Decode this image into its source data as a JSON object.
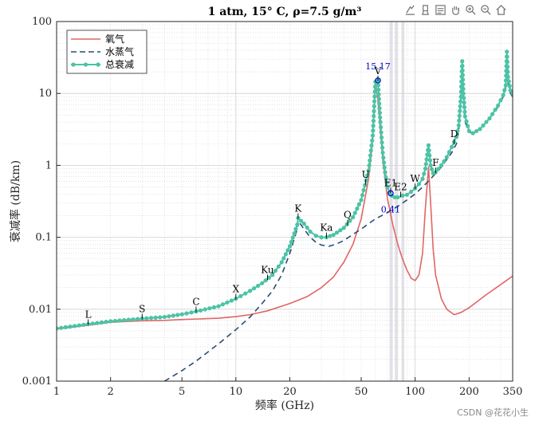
{
  "toolbar": {
    "icons": [
      "export-icon",
      "brush-icon",
      "datatip-icon",
      "pan-icon",
      "zoom-in-icon",
      "zoom-out-icon",
      "home-icon"
    ]
  },
  "watermark": "CSDN @花花小生",
  "colors": {
    "oxygen": "#e06666",
    "water": "#2b4d74",
    "total": "#4cc3a5",
    "datatip": "#0000cc",
    "band": "#c8c8d4",
    "grid": "#d0d0d0"
  },
  "chart_data": {
    "type": "line",
    "title": "1  atm,  15° C,  ρ=7.5  g/m³",
    "xlabel": "频率 (GHz)",
    "ylabel": "衰减率 (dB/km)",
    "xscale": "log",
    "yscale": "log",
    "xlim": [
      1,
      350
    ],
    "ylim": [
      0.001,
      100
    ],
    "grid": true,
    "legend_position": "top-left",
    "xticks": [
      {
        "v": 1,
        "label": "1"
      },
      {
        "v": 2,
        "label": "2"
      },
      {
        "v": 5,
        "label": "5"
      },
      {
        "v": 10,
        "label": "10"
      },
      {
        "v": 20,
        "label": "20"
      },
      {
        "v": 50,
        "label": "50"
      },
      {
        "v": 100,
        "label": "100"
      },
      {
        "v": 200,
        "label": "200"
      },
      {
        "v": 350,
        "label": "350"
      }
    ],
    "yticks": [
      {
        "v": 0.001,
        "label": "0.001"
      },
      {
        "v": 0.01,
        "label": "0.01"
      },
      {
        "v": 0.1,
        "label": "0.1"
      },
      {
        "v": 1,
        "label": "1"
      },
      {
        "v": 10,
        "label": "10"
      },
      {
        "v": 100,
        "label": "100"
      }
    ],
    "shaded_bands": [
      [
        72,
        75
      ],
      [
        77,
        80
      ],
      [
        84,
        87
      ]
    ],
    "series": [
      {
        "name": "氧气",
        "style": "solid",
        "points": [
          [
            1,
            0.0053
          ],
          [
            1.5,
            0.006
          ],
          [
            2,
            0.0066
          ],
          [
            3,
            0.0069
          ],
          [
            4,
            0.007
          ],
          [
            5,
            0.0072
          ],
          [
            6,
            0.0073
          ],
          [
            8,
            0.0075
          ],
          [
            10,
            0.0079
          ],
          [
            12,
            0.0084
          ],
          [
            15,
            0.0095
          ],
          [
            20,
            0.012
          ],
          [
            25,
            0.015
          ],
          [
            30,
            0.02
          ],
          [
            35,
            0.028
          ],
          [
            40,
            0.045
          ],
          [
            45,
            0.08
          ],
          [
            50,
            0.18
          ],
          [
            55,
            0.65
          ],
          [
            58,
            2.3
          ],
          [
            60,
            14
          ],
          [
            62,
            8
          ],
          [
            64,
            3
          ],
          [
            66,
            1.2
          ],
          [
            70,
            0.35
          ],
          [
            75,
            0.15
          ],
          [
            80,
            0.08
          ],
          [
            85,
            0.05
          ],
          [
            90,
            0.035
          ],
          [
            95,
            0.027
          ],
          [
            100,
            0.025
          ],
          [
            105,
            0.03
          ],
          [
            110,
            0.06
          ],
          [
            114,
            0.25
          ],
          [
            118.75,
            0.95
          ],
          [
            122,
            0.3
          ],
          [
            126,
            0.07
          ],
          [
            130,
            0.03
          ],
          [
            140,
            0.014
          ],
          [
            150,
            0.01
          ],
          [
            165,
            0.0084
          ],
          [
            180,
            0.009
          ],
          [
            200,
            0.0105
          ],
          [
            250,
            0.016
          ],
          [
            300,
            0.022
          ],
          [
            350,
            0.029
          ]
        ]
      },
      {
        "name": "水蒸气",
        "style": "dashed",
        "points": [
          [
            4,
            0.001
          ],
          [
            5,
            0.0014
          ],
          [
            6,
            0.0019
          ],
          [
            8,
            0.0033
          ],
          [
            10,
            0.0052
          ],
          [
            12,
            0.0078
          ],
          [
            14,
            0.012
          ],
          [
            16,
            0.018
          ],
          [
            18,
            0.03
          ],
          [
            20,
            0.06
          ],
          [
            22,
            0.13
          ],
          [
            22.235,
            0.17
          ],
          [
            24,
            0.13
          ],
          [
            26,
            0.1
          ],
          [
            28,
            0.085
          ],
          [
            30,
            0.078
          ],
          [
            33,
            0.075
          ],
          [
            36,
            0.08
          ],
          [
            40,
            0.09
          ],
          [
            45,
            0.11
          ],
          [
            50,
            0.13
          ],
          [
            55,
            0.155
          ],
          [
            60,
            0.18
          ],
          [
            70,
            0.22
          ],
          [
            80,
            0.27
          ],
          [
            90,
            0.33
          ],
          [
            100,
            0.4
          ],
          [
            110,
            0.5
          ],
          [
            120,
            0.62
          ],
          [
            140,
            0.95
          ],
          [
            160,
            1.5
          ],
          [
            170,
            2.0
          ],
          [
            175,
            3.0
          ],
          [
            180,
            8.0
          ],
          [
            183,
            26
          ],
          [
            186,
            8
          ],
          [
            190,
            4.0
          ],
          [
            200,
            2.9
          ],
          [
            210,
            2.8
          ],
          [
            230,
            3.2
          ],
          [
            260,
            4.5
          ],
          [
            290,
            6.5
          ],
          [
            310,
            9
          ],
          [
            320,
            12
          ],
          [
            325,
            30
          ],
          [
            330,
            14
          ],
          [
            340,
            10
          ],
          [
            350,
            9
          ]
        ]
      },
      {
        "name": "总衰减",
        "style": "solid-marker",
        "points": [
          [
            1,
            0.0054
          ],
          [
            1.5,
            0.0062
          ],
          [
            2,
            0.0068
          ],
          [
            3,
            0.0074
          ],
          [
            4,
            0.0078
          ],
          [
            5,
            0.0085
          ],
          [
            6,
            0.0093
          ],
          [
            8,
            0.011
          ],
          [
            10,
            0.014
          ],
          [
            12,
            0.018
          ],
          [
            14,
            0.023
          ],
          [
            16,
            0.03
          ],
          [
            18,
            0.045
          ],
          [
            20,
            0.075
          ],
          [
            22,
            0.15
          ],
          [
            22.235,
            0.185
          ],
          [
            24,
            0.155
          ],
          [
            26,
            0.12
          ],
          [
            28,
            0.105
          ],
          [
            30,
            0.1
          ],
          [
            32,
            0.1
          ],
          [
            35,
            0.108
          ],
          [
            40,
            0.135
          ],
          [
            45,
            0.19
          ],
          [
            50,
            0.33
          ],
          [
            55,
            0.85
          ],
          [
            58,
            2.6
          ],
          [
            60,
            14.5
          ],
          [
            62,
            15.17
          ],
          [
            64,
            4
          ],
          [
            66,
            1.5
          ],
          [
            68,
            0.8
          ],
          [
            70,
            0.5
          ],
          [
            72,
            0.42
          ],
          [
            74,
            0.38
          ],
          [
            77,
            0.36
          ],
          [
            80,
            0.36
          ],
          [
            85,
            0.38
          ],
          [
            90,
            0.39
          ],
          [
            95,
            0.43
          ],
          [
            100,
            0.48
          ],
          [
            105,
            0.55
          ],
          [
            110,
            0.65
          ],
          [
            114,
            0.9
          ],
          [
            118.75,
            1.9
          ],
          [
            122,
            1.0
          ],
          [
            126,
            0.78
          ],
          [
            130,
            0.8
          ],
          [
            140,
            1.0
          ],
          [
            150,
            1.3
          ],
          [
            160,
            1.8
          ],
          [
            170,
            2.5
          ],
          [
            175,
            3.6
          ],
          [
            180,
            9
          ],
          [
            183,
            28
          ],
          [
            186,
            10
          ],
          [
            190,
            4.8
          ],
          [
            200,
            3.0
          ],
          [
            210,
            2.8
          ],
          [
            230,
            3.2
          ],
          [
            260,
            4.5
          ],
          [
            290,
            6.8
          ],
          [
            310,
            9.5
          ],
          [
            320,
            13
          ],
          [
            325,
            38
          ],
          [
            330,
            17
          ],
          [
            340,
            11
          ],
          [
            350,
            10
          ]
        ]
      }
    ],
    "band_labels": [
      {
        "label": "L",
        "x": 1.5,
        "y": 0.0062
      },
      {
        "label": "S",
        "x": 3,
        "y": 0.0074
      },
      {
        "label": "C",
        "x": 6,
        "y": 0.0093
      },
      {
        "label": "X",
        "x": 10,
        "y": 0.014
      },
      {
        "label": "Ku",
        "x": 15,
        "y": 0.026
      },
      {
        "label": "K",
        "x": 22.235,
        "y": 0.185
      },
      {
        "label": "Ka",
        "x": 32,
        "y": 0.1
      },
      {
        "label": "Q",
        "x": 42,
        "y": 0.15
      },
      {
        "label": "U",
        "x": 53,
        "y": 0.55
      },
      {
        "label": "V",
        "x": 62,
        "y": 15.17
      },
      {
        "label": "E1",
        "x": 73,
        "y": 0.42
      },
      {
        "label": "E2",
        "x": 83,
        "y": 0.37
      },
      {
        "label": "W",
        "x": 100,
        "y": 0.48
      },
      {
        "label": "F",
        "x": 130,
        "y": 0.8
      },
      {
        "label": "D",
        "x": 165,
        "y": 2.0
      }
    ],
    "datatips": [
      {
        "x": 62,
        "y": 15.17,
        "label": "15.17"
      },
      {
        "x": 73,
        "y": 0.41,
        "label": "0.41"
      }
    ]
  }
}
